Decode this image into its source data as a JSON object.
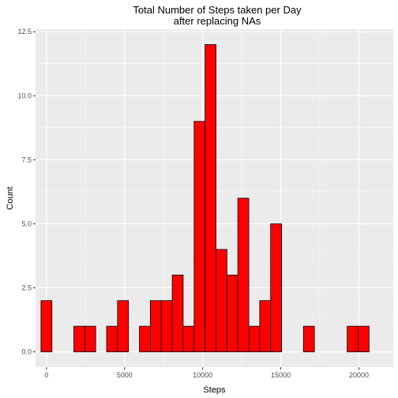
{
  "chart_data": {
    "type": "bar",
    "title": "Total Number of Steps taken per Day",
    "subtitle": "after replacing NAs",
    "xlabel": "Steps",
    "ylabel": "Count",
    "xlim": [
      -700,
      22200
    ],
    "ylim": [
      -0.6,
      12.6
    ],
    "bin_width": 700,
    "x_ticks": [
      0,
      5000,
      10000,
      15000,
      20000
    ],
    "x_tick_labels": [
      "0",
      "5000",
      "10000",
      "15000",
      "20000"
    ],
    "y_ticks": [
      0,
      2.5,
      5,
      7.5,
      10,
      12.5
    ],
    "y_tick_labels": [
      "0.0",
      "2.5",
      "5.0",
      "7.5",
      "10.0",
      "12.5"
    ],
    "bins": [
      {
        "center": 0,
        "count": 2
      },
      {
        "center": 700,
        "count": 0
      },
      {
        "center": 1400,
        "count": 0
      },
      {
        "center": 2100,
        "count": 1
      },
      {
        "center": 2800,
        "count": 1
      },
      {
        "center": 3500,
        "count": 0
      },
      {
        "center": 4200,
        "count": 1
      },
      {
        "center": 4900,
        "count": 2
      },
      {
        "center": 5600,
        "count": 0
      },
      {
        "center": 6300,
        "count": 1
      },
      {
        "center": 7000,
        "count": 2
      },
      {
        "center": 7700,
        "count": 2
      },
      {
        "center": 8400,
        "count": 3
      },
      {
        "center": 9100,
        "count": 1
      },
      {
        "center": 9800,
        "count": 9
      },
      {
        "center": 10500,
        "count": 12
      },
      {
        "center": 11200,
        "count": 4
      },
      {
        "center": 11900,
        "count": 3
      },
      {
        "center": 12600,
        "count": 6
      },
      {
        "center": 13300,
        "count": 1
      },
      {
        "center": 14000,
        "count": 2
      },
      {
        "center": 14700,
        "count": 5
      },
      {
        "center": 15400,
        "count": 0
      },
      {
        "center": 16100,
        "count": 0
      },
      {
        "center": 16800,
        "count": 1
      },
      {
        "center": 17500,
        "count": 0
      },
      {
        "center": 18200,
        "count": 0
      },
      {
        "center": 18900,
        "count": 0
      },
      {
        "center": 19600,
        "count": 1
      },
      {
        "center": 20300,
        "count": 1
      }
    ],
    "colors": {
      "bar_fill": "#ff0000",
      "bar_stroke": "#000000",
      "panel_background": "#ebebeb",
      "grid": "#ffffff",
      "tick": "#333333"
    }
  }
}
